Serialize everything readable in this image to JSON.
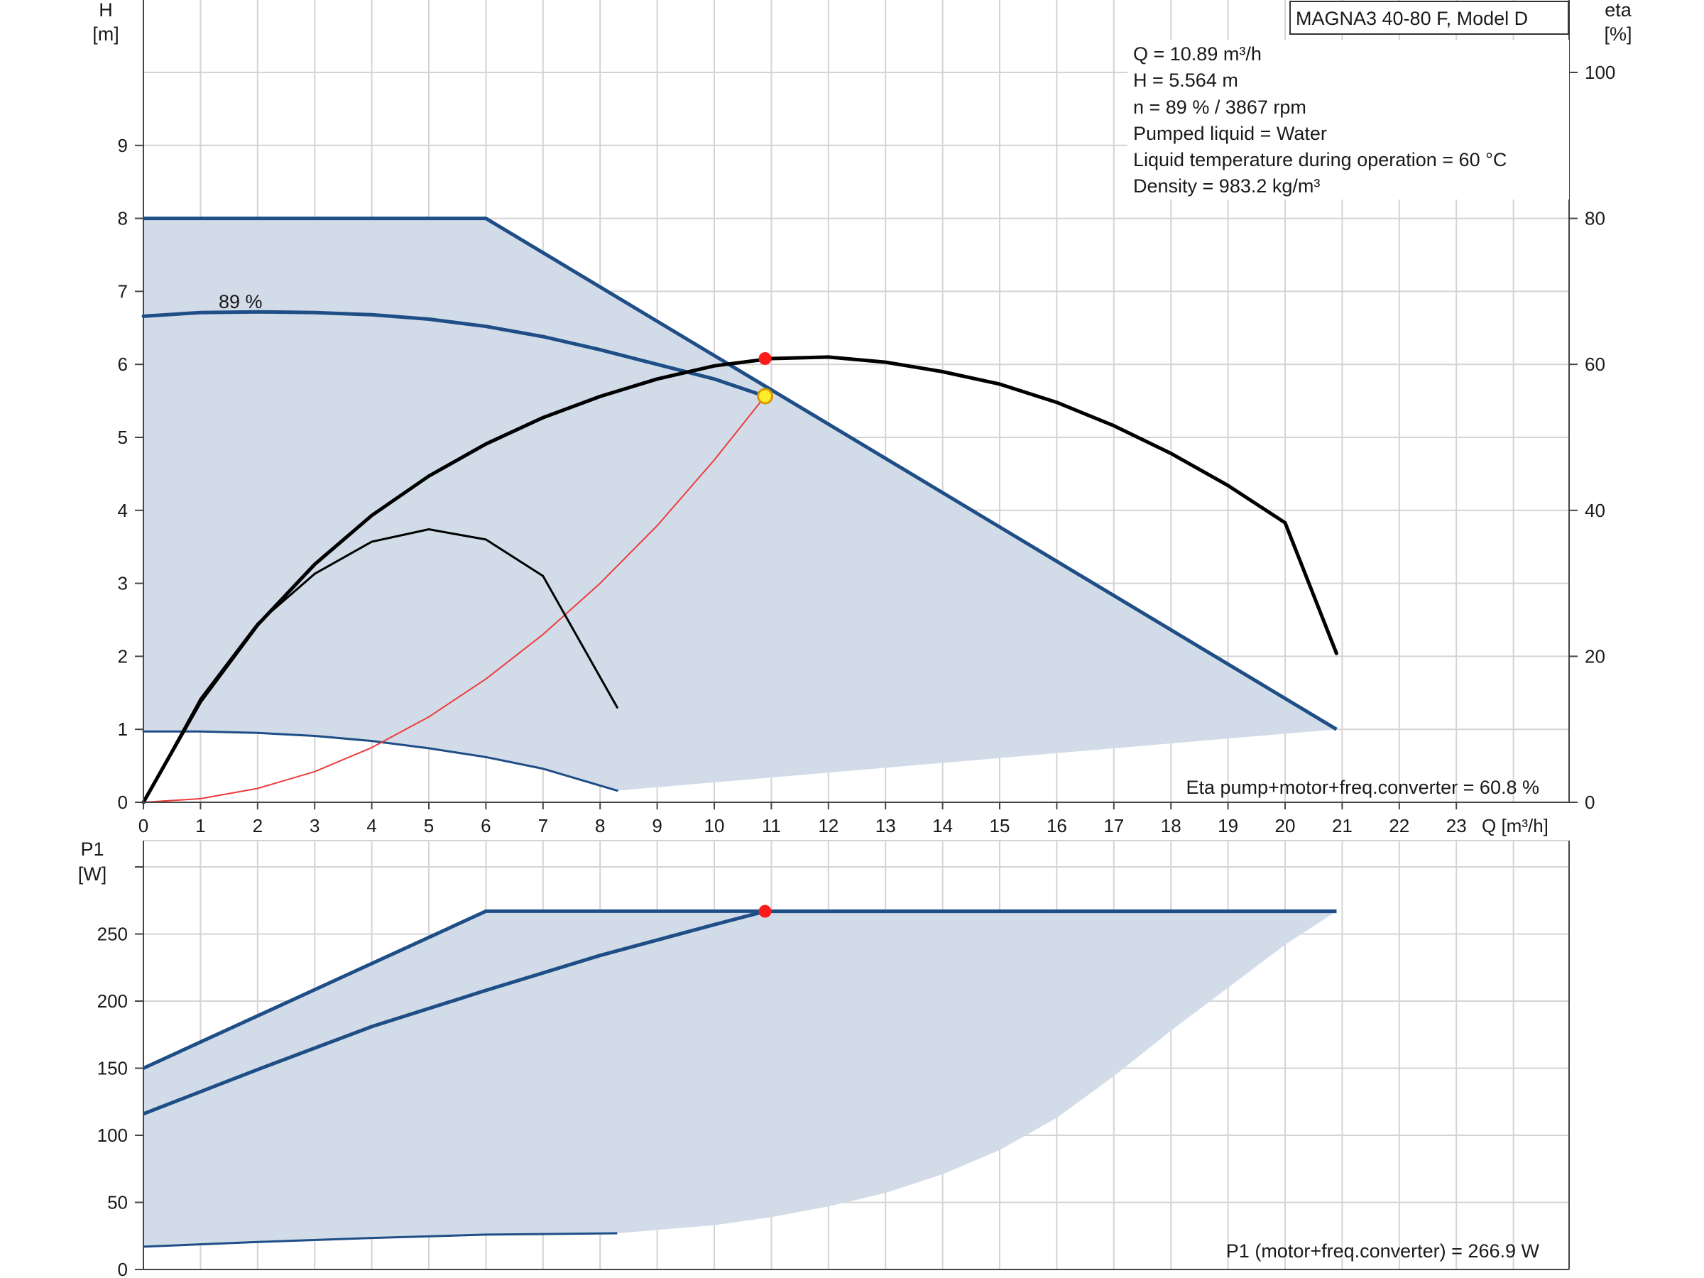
{
  "colors": {
    "envelope_fill": "#d1dce8",
    "curve_blue": "#1f4e87",
    "grid": "#d4d4d4",
    "efficiency": "#000000",
    "system_curve": "#ee3b3b",
    "duty_point_head": "#ffeb2a",
    "duty_point_marker": "#ff1a1a"
  },
  "chart_data": [
    {
      "id": "head",
      "type": "line",
      "xlabel": "Q [m³/h]",
      "ylabel_left": [
        "H",
        "[m]"
      ],
      "ylabel_right": [
        "eta",
        "[%]"
      ],
      "xlim": [
        0,
        25
      ],
      "ylim": [
        0,
        11
      ],
      "y2lim": [
        0,
        110
      ],
      "x_ticks": [
        0,
        1,
        2,
        3,
        4,
        5,
        6,
        7,
        8,
        9,
        10,
        11,
        12,
        13,
        14,
        15,
        16,
        17,
        18,
        19,
        20,
        21,
        22,
        23
      ],
      "y_ticks": [
        0,
        1,
        2,
        3,
        4,
        5,
        6,
        7,
        8,
        9
      ],
      "y2_ticks": [
        0,
        20,
        40,
        60,
        80,
        100
      ],
      "grid": true,
      "model_label": "MAGNA3 40-80 F, Model D",
      "info_lines": [
        "Q = 10.89 m³/h",
        "H = 5.564 m",
        "n = 89 % / 3867 rpm",
        "Pumped liquid = Water",
        "Liquid temperature during operation = 60 °C",
        "Density = 983.2 kg/m³"
      ],
      "curve_label": "89 %",
      "footer_text": "Eta pump+motor+freq.converter = 60.8 %",
      "duty_point": {
        "Q": 10.89,
        "H": 5.564,
        "eta": 60.8
      },
      "envelope": {
        "upper": [
          [
            0,
            8
          ],
          [
            6,
            8
          ],
          [
            20.9,
            1.0
          ]
        ],
        "lower": [
          [
            0,
            0.97
          ],
          [
            1,
            0.97
          ],
          [
            2,
            0.95
          ],
          [
            3,
            0.91
          ],
          [
            4,
            0.84
          ],
          [
            5,
            0.74
          ],
          [
            6,
            0.62
          ],
          [
            7,
            0.46
          ],
          [
            8.3,
            0.16
          ],
          [
            20.9,
            1.0
          ]
        ]
      },
      "series": [
        {
          "name": "89 %",
          "y_axis": "left",
          "points": [
            [
              0,
              6.66
            ],
            [
              1,
              6.71
            ],
            [
              2,
              6.72
            ],
            [
              3,
              6.71
            ],
            [
              4,
              6.68
            ],
            [
              5,
              6.62
            ],
            [
              6,
              6.52
            ],
            [
              7,
              6.38
            ],
            [
              8,
              6.2
            ],
            [
              9,
              6.0
            ],
            [
              10,
              5.8
            ],
            [
              10.89,
              5.564
            ]
          ]
        },
        {
          "name": "Min curve",
          "y_axis": "left",
          "points": [
            [
              0,
              0.97
            ],
            [
              1,
              0.97
            ],
            [
              2,
              0.95
            ],
            [
              3,
              0.91
            ],
            [
              4,
              0.84
            ],
            [
              5,
              0.74
            ],
            [
              6,
              0.62
            ],
            [
              7,
              0.46
            ],
            [
              8.3,
              0.16
            ]
          ]
        },
        {
          "name": "System curve",
          "y_axis": "left",
          "points": [
            [
              0,
              0
            ],
            [
              1,
              0.05
            ],
            [
              2,
              0.19
            ],
            [
              3,
              0.42
            ],
            [
              4,
              0.75
            ],
            [
              5,
              1.17
            ],
            [
              6,
              1.69
            ],
            [
              7,
              2.3
            ],
            [
              8,
              3.0
            ],
            [
              9,
              3.79
            ],
            [
              10,
              4.69
            ],
            [
              10.89,
              5.564
            ]
          ]
        },
        {
          "name": "Eta duty",
          "y_axis": "right",
          "points": [
            [
              0,
              0
            ],
            [
              1,
              13.8
            ],
            [
              2,
              24.3
            ],
            [
              3,
              32.6
            ],
            [
              4,
              39.3
            ],
            [
              5,
              44.7
            ],
            [
              6,
              49.1
            ],
            [
              7,
              52.7
            ],
            [
              8,
              55.6
            ],
            [
              9,
              58.0
            ],
            [
              10,
              59.8
            ],
            [
              11,
              60.8
            ],
            [
              12,
              61.0
            ],
            [
              13,
              60.3
            ],
            [
              14,
              59.0
            ],
            [
              15,
              57.3
            ],
            [
              16,
              54.8
            ],
            [
              17,
              51.6
            ],
            [
              18,
              47.8
            ],
            [
              19,
              43.4
            ],
            [
              20,
              38.3
            ],
            [
              20.9,
              20.4
            ]
          ]
        },
        {
          "name": "Eta low",
          "y_axis": "right",
          "points": [
            [
              0,
              0
            ],
            [
              1,
              14.2
            ],
            [
              2,
              24.5
            ],
            [
              3,
              31.3
            ],
            [
              4,
              35.7
            ],
            [
              5,
              37.4
            ],
            [
              6,
              36.0
            ],
            [
              7,
              31.0
            ],
            [
              8.3,
              13.0
            ]
          ]
        }
      ]
    },
    {
      "id": "power",
      "type": "line",
      "ylabel_left": [
        "P1",
        "[W]"
      ],
      "xlim": [
        0,
        25
      ],
      "ylim": [
        0,
        300
      ],
      "y_ticks": [
        0,
        50,
        100,
        150,
        200,
        250
      ],
      "grid": true,
      "footer_text": "P1 (motor+freq.converter) = 266.9 W",
      "duty_point": {
        "Q": 10.89,
        "P1": 266.9
      },
      "envelope": {
        "upper": [
          [
            0,
            150
          ],
          [
            6,
            267
          ],
          [
            20.9,
            267
          ]
        ],
        "lower": [
          [
            0,
            17
          ],
          [
            3,
            21
          ],
          [
            6,
            26
          ],
          [
            8.3,
            27
          ],
          [
            10,
            33
          ],
          [
            11,
            39
          ],
          [
            12,
            47
          ],
          [
            13,
            57
          ],
          [
            14,
            71
          ],
          [
            15,
            89
          ],
          [
            16,
            113
          ],
          [
            17,
            144
          ],
          [
            18,
            178
          ],
          [
            19,
            210
          ],
          [
            20,
            242
          ],
          [
            20.9,
            267
          ]
        ]
      },
      "series": [
        {
          "name": "89 %",
          "points": [
            [
              0,
              116
            ],
            [
              2,
              149
            ],
            [
              4,
              181
            ],
            [
              6,
              208
            ],
            [
              8,
              234
            ],
            [
              10,
              257
            ],
            [
              10.89,
              266.9
            ],
            [
              20.9,
              266.9
            ]
          ]
        },
        {
          "name": "Min curve",
          "points": [
            [
              0,
              17
            ],
            [
              2,
              20.5
            ],
            [
              4,
              23.5
            ],
            [
              6,
              26
            ],
            [
              8.3,
              27
            ]
          ]
        }
      ]
    }
  ]
}
